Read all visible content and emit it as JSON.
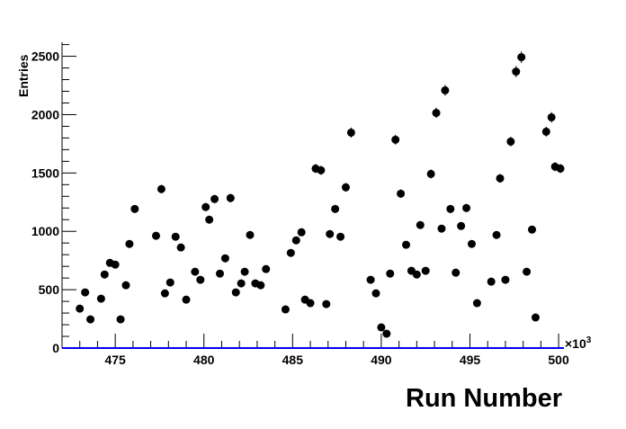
{
  "chart_data": {
    "type": "scatter",
    "title": "",
    "xlabel": "Run Number",
    "ylabel": "Entries",
    "x_multiplier_label": "×10",
    "x_multiplier_exponent": "3",
    "xlim": [
      472.0,
      500.3
    ],
    "ylim": [
      0,
      2620
    ],
    "x_ticks": [
      475,
      480,
      485,
      490,
      495,
      500
    ],
    "x_tick_labels": [
      "475",
      "480",
      "485",
      "490",
      "495",
      "500"
    ],
    "y_ticks": [
      0,
      500,
      1000,
      1500,
      2000,
      2500
    ],
    "y_tick_labels": [
      "0",
      "500",
      "1000",
      "1500",
      "2000",
      "2500"
    ],
    "grid": false,
    "legend": "none",
    "colors": {
      "marker": "#000000",
      "baseline": "#0000ff",
      "axis": "#000000"
    },
    "x": [
      473.0,
      473.3,
      473.6,
      474.2,
      474.4,
      474.7,
      475.0,
      475.3,
      475.6,
      475.8,
      476.1,
      477.3,
      477.6,
      477.8,
      478.1,
      478.4,
      478.7,
      479.0,
      479.5,
      479.8,
      480.1,
      480.3,
      480.6,
      480.9,
      481.2,
      481.5,
      481.8,
      482.1,
      482.3,
      482.6,
      482.9,
      483.2,
      483.5,
      484.6,
      484.9,
      485.2,
      485.5,
      485.7,
      486.0,
      486.3,
      486.6,
      486.9,
      487.1,
      487.4,
      487.7,
      488.0,
      488.3,
      489.4,
      489.7,
      490.0,
      490.3,
      490.5,
      490.8,
      491.1,
      491.4,
      491.7,
      492.0,
      492.2,
      492.5,
      492.8,
      493.1,
      493.4,
      493.6,
      493.9,
      494.2,
      494.5,
      494.8,
      495.1,
      495.4,
      496.2,
      496.5,
      496.7,
      497.0,
      497.3,
      497.6,
      497.9,
      498.2,
      498.5,
      498.7,
      499.3,
      499.6,
      499.8,
      500.1
    ],
    "y": [
      338,
      477,
      246,
      423,
      630,
      730,
      715,
      246,
      538,
      892,
      1192,
      962,
      1362,
      469,
      562,
      954,
      862,
      415,
      654,
      585,
      1208,
      1100,
      1277,
      638,
      769,
      1285,
      477,
      554,
      654,
      969,
      554,
      538,
      677,
      331,
      815,
      923,
      992,
      415,
      385,
      1538,
      1523,
      377,
      977,
      1192,
      954,
      1377,
      1846,
      585,
      469,
      177,
      123,
      638,
      1785,
      1323,
      885,
      662,
      630,
      1054,
      662,
      1492,
      2015,
      1023,
      2208,
      1192,
      646,
      1046,
      1200,
      892,
      385,
      569,
      969,
      1454,
      585,
      1769,
      2369,
      2492,
      654,
      1015,
      262,
      1854,
      1977,
      1554,
      1538
    ]
  }
}
